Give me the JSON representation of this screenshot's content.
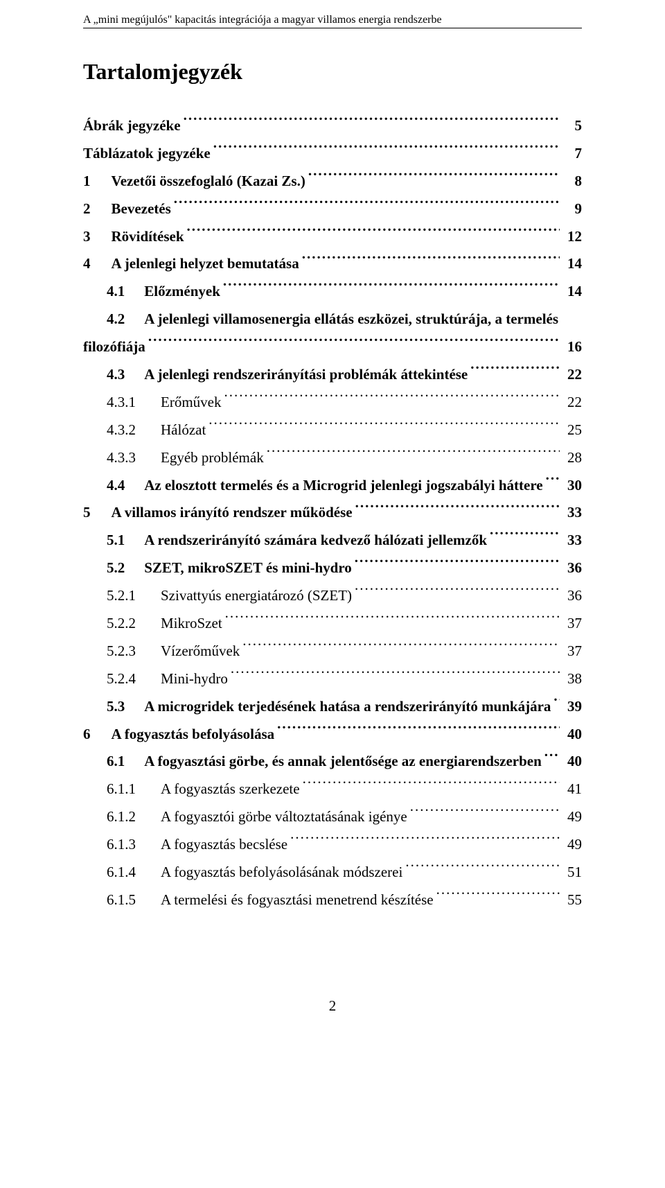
{
  "header": "A „mini megújulós\" kapacitás integrációja a magyar villamos energia rendszerbe",
  "title": "Tartalomjegyzék",
  "footer_page": "2",
  "toc": [
    {
      "num": "",
      "label": "Ábrák jegyzéke",
      "page": "5",
      "bold": true,
      "level": 0
    },
    {
      "num": "",
      "label": "Táblázatok jegyzéke",
      "page": "7",
      "bold": true,
      "level": 0
    },
    {
      "num": "1",
      "label": "Vezetői összefoglaló (Kazai Zs.)",
      "page": "8",
      "bold": true,
      "level": 1
    },
    {
      "num": "2",
      "label": "Bevezetés",
      "page": "9",
      "bold": true,
      "level": 1
    },
    {
      "num": "3",
      "label": "Rövidítések",
      "page": "12",
      "bold": true,
      "level": 1
    },
    {
      "num": "4",
      "label": "A jelenlegi helyzet bemutatása",
      "page": "14",
      "bold": true,
      "level": 1
    },
    {
      "num": "4.1",
      "label": "Előzmények",
      "page": "14",
      "bold": true,
      "level": 2
    },
    {
      "num": "4.2",
      "label": "A jelenlegi villamosenergia ellátás eszközei, struktúrája, a termelés",
      "label2": "filozófiája",
      "page": "16",
      "bold": true,
      "level": 2,
      "wrap": true
    },
    {
      "num": "4.3",
      "label": "A jelenlegi rendszerirányítási problémák áttekintése",
      "page": "22",
      "bold": true,
      "level": 2
    },
    {
      "num": "4.3.1",
      "label": "Erőművek",
      "page": "22",
      "bold": false,
      "level": 3
    },
    {
      "num": "4.3.2",
      "label": "Hálózat",
      "page": "25",
      "bold": false,
      "level": 3
    },
    {
      "num": "4.3.3",
      "label": "Egyéb problémák",
      "page": "28",
      "bold": false,
      "level": 3
    },
    {
      "num": "4.4",
      "label": "Az elosztott termelés és a Microgrid jelenlegi jogszabályi háttere",
      "page": "30",
      "bold": true,
      "level": 2
    },
    {
      "num": "5",
      "label": "A villamos irányító rendszer működése",
      "page": "33",
      "bold": true,
      "level": 1
    },
    {
      "num": "5.1",
      "label": "A rendszerirányító számára kedvező hálózati jellemzők",
      "page": "33",
      "bold": true,
      "level": 2
    },
    {
      "num": "5.2",
      "label": "SZET, mikroSZET és mini-hydro",
      "page": "36",
      "bold": true,
      "level": 2
    },
    {
      "num": "5.2.1",
      "label": "Szivattyús energiatározó (SZET)",
      "page": "36",
      "bold": false,
      "level": 3
    },
    {
      "num": "5.2.2",
      "label": "MikroSzet",
      "page": "37",
      "bold": false,
      "level": 3
    },
    {
      "num": "5.2.3",
      "label": "Vízerőművek",
      "page": "37",
      "bold": false,
      "level": 3
    },
    {
      "num": "5.2.4",
      "label": "Mini-hydro",
      "page": "38",
      "bold": false,
      "level": 3
    },
    {
      "num": "5.3",
      "label": "A microgridek terjedésének hatása a rendszerirányító munkájára",
      "page": "39",
      "bold": true,
      "level": 2
    },
    {
      "num": "6",
      "label": "A fogyasztás befolyásolása",
      "page": "40",
      "bold": true,
      "level": 1
    },
    {
      "num": "6.1",
      "label": "A fogyasztási görbe, és annak jelentősége az energiarendszerben",
      "page": "40",
      "bold": true,
      "level": 2
    },
    {
      "num": "6.1.1",
      "label": "A fogyasztás szerkezete",
      "page": "41",
      "bold": false,
      "level": 3
    },
    {
      "num": "6.1.2",
      "label": "A fogyasztói görbe változtatásának igénye",
      "page": "49",
      "bold": false,
      "level": 3
    },
    {
      "num": "6.1.3",
      "label": "A fogyasztás becslése",
      "page": "49",
      "bold": false,
      "level": 3
    },
    {
      "num": "6.1.4",
      "label": "A fogyasztás befolyásolásának módszerei",
      "page": "51",
      "bold": false,
      "level": 3
    },
    {
      "num": "6.1.5",
      "label": "A termelési és fogyasztási menetrend készítése",
      "page": "55",
      "bold": false,
      "level": 3
    }
  ]
}
